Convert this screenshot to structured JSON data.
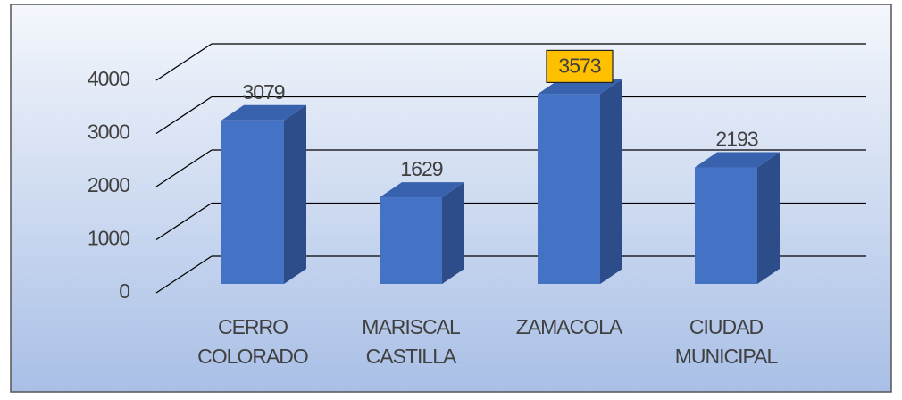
{
  "chart_data": {
    "type": "bar3d",
    "categories": [
      "CERRO COLORADO",
      "MARISCAL CASTILLA",
      "ZAMACOLA",
      "CIUDAD MUNICIPAL"
    ],
    "values": [
      3079,
      1629,
      3573,
      2193
    ],
    "color": "#4472c4",
    "label_colors": [
      null,
      null,
      "#ffc000",
      null
    ],
    "ylim": [
      0,
      4000
    ],
    "yticks": [
      0,
      1000,
      2000,
      3000,
      4000
    ],
    "grid": true
  }
}
